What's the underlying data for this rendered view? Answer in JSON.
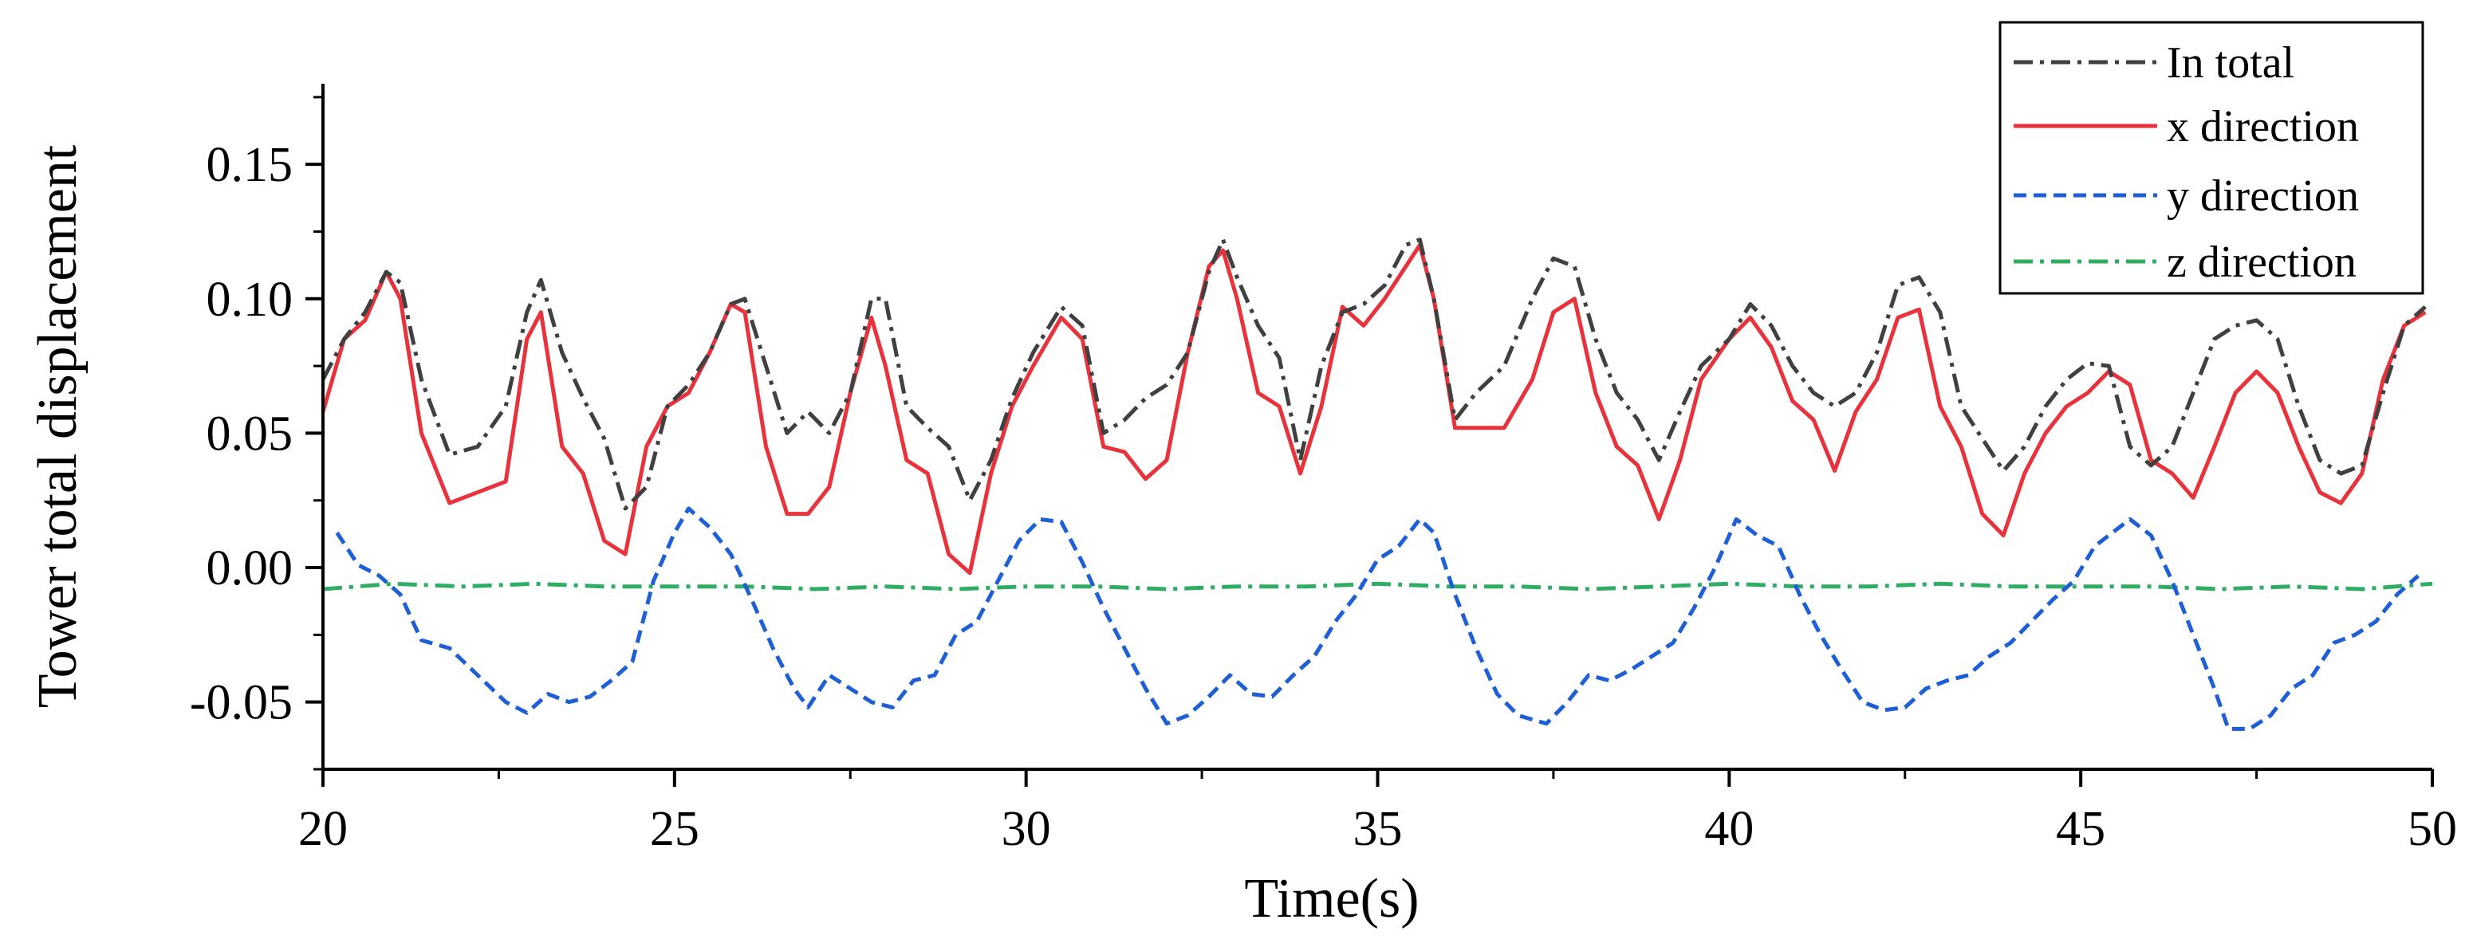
{
  "chart_data": {
    "type": "line",
    "title": "",
    "xlabel": "Time(s)",
    "ylabel": "Tower total displacement",
    "xlim": [
      20,
      50
    ],
    "ylim": [
      -0.075,
      0.18
    ],
    "x_ticks": [
      20,
      25,
      30,
      35,
      40,
      45,
      50
    ],
    "x_tick_labels": [
      "20",
      "25",
      "30",
      "35",
      "40",
      "45",
      "50"
    ],
    "y_ticks": [
      -0.05,
      0,
      0.05,
      0.1,
      0.15
    ],
    "y_tick_labels": [
      "-0.05",
      "0.00",
      "0.05",
      "0.10",
      "0.15"
    ],
    "legend_position": "top-right",
    "series": [
      {
        "name": "In total",
        "color": "#404040",
        "style": "dashdot",
        "x": [
          20.0,
          20.3,
          20.6,
          20.9,
          21.1,
          21.4,
          21.8,
          22.2,
          22.6,
          22.9,
          23.1,
          23.4,
          23.7,
          24.0,
          24.3,
          24.6,
          24.9,
          25.2,
          25.5,
          25.8,
          26.0,
          26.3,
          26.6,
          26.9,
          27.2,
          27.5,
          27.8,
          28.0,
          28.3,
          28.6,
          28.9,
          29.2,
          29.5,
          29.8,
          30.1,
          30.5,
          30.8,
          31.1,
          31.4,
          31.7,
          32.0,
          32.3,
          32.6,
          32.8,
          33.0,
          33.3,
          33.6,
          33.9,
          34.2,
          34.5,
          34.8,
          35.1,
          35.4,
          35.6,
          35.8,
          36.1,
          36.4,
          36.8,
          37.2,
          37.5,
          37.8,
          38.1,
          38.4,
          38.7,
          39.0,
          39.3,
          39.6,
          40.0,
          40.3,
          40.6,
          40.9,
          41.2,
          41.5,
          41.8,
          42.1,
          42.4,
          42.7,
          43.0,
          43.3,
          43.6,
          43.9,
          44.2,
          44.5,
          44.8,
          45.1,
          45.4,
          45.7,
          46.0,
          46.3,
          46.6,
          46.9,
          47.2,
          47.5,
          47.8,
          48.1,
          48.4,
          48.7,
          49.0,
          49.3,
          49.6,
          49.9
        ],
        "y": [
          0.07,
          0.085,
          0.095,
          0.11,
          0.106,
          0.07,
          0.042,
          0.045,
          0.06,
          0.095,
          0.107,
          0.08,
          0.063,
          0.048,
          0.022,
          0.03,
          0.06,
          0.068,
          0.08,
          0.098,
          0.1,
          0.075,
          0.05,
          0.058,
          0.05,
          0.065,
          0.1,
          0.1,
          0.06,
          0.052,
          0.045,
          0.025,
          0.04,
          0.063,
          0.08,
          0.097,
          0.09,
          0.05,
          0.055,
          0.063,
          0.068,
          0.08,
          0.11,
          0.122,
          0.108,
          0.09,
          0.078,
          0.04,
          0.075,
          0.095,
          0.098,
          0.105,
          0.12,
          0.122,
          0.1,
          0.055,
          0.065,
          0.075,
          0.1,
          0.115,
          0.112,
          0.085,
          0.065,
          0.055,
          0.04,
          0.058,
          0.075,
          0.085,
          0.098,
          0.09,
          0.075,
          0.065,
          0.06,
          0.065,
          0.08,
          0.105,
          0.108,
          0.095,
          0.06,
          0.048,
          0.036,
          0.045,
          0.06,
          0.07,
          0.076,
          0.075,
          0.045,
          0.038,
          0.045,
          0.065,
          0.085,
          0.09,
          0.092,
          0.085,
          0.06,
          0.04,
          0.035,
          0.038,
          0.065,
          0.09,
          0.097
        ]
      },
      {
        "name": "x direction",
        "color": "#e8323c",
        "style": "solid",
        "x": [
          20.0,
          20.3,
          20.6,
          20.9,
          21.1,
          21.4,
          21.8,
          22.2,
          22.6,
          22.9,
          23.1,
          23.4,
          23.7,
          24.0,
          24.3,
          24.6,
          24.9,
          25.2,
          25.5,
          25.8,
          26.0,
          26.3,
          26.6,
          26.9,
          27.2,
          27.5,
          27.8,
          28.0,
          28.3,
          28.6,
          28.9,
          29.2,
          29.5,
          29.8,
          30.1,
          30.5,
          30.8,
          31.1,
          31.4,
          31.7,
          32.0,
          32.3,
          32.6,
          32.8,
          33.0,
          33.3,
          33.6,
          33.9,
          34.2,
          34.5,
          34.8,
          35.1,
          35.4,
          35.6,
          35.8,
          36.1,
          36.4,
          36.8,
          37.2,
          37.5,
          37.8,
          38.1,
          38.4,
          38.7,
          39.0,
          39.3,
          39.6,
          40.0,
          40.3,
          40.6,
          40.9,
          41.2,
          41.5,
          41.8,
          42.1,
          42.4,
          42.7,
          43.0,
          43.3,
          43.6,
          43.9,
          44.2,
          44.5,
          44.8,
          45.1,
          45.4,
          45.7,
          46.0,
          46.3,
          46.6,
          46.9,
          47.2,
          47.5,
          47.8,
          48.1,
          48.4,
          48.7,
          49.0,
          49.3,
          49.6,
          49.9
        ],
        "y": [
          0.058,
          0.085,
          0.092,
          0.11,
          0.1,
          0.05,
          0.024,
          0.028,
          0.032,
          0.085,
          0.095,
          0.045,
          0.035,
          0.01,
          0.005,
          0.045,
          0.06,
          0.065,
          0.08,
          0.098,
          0.095,
          0.045,
          0.02,
          0.02,
          0.03,
          0.065,
          0.093,
          0.075,
          0.04,
          0.035,
          0.005,
          -0.002,
          0.035,
          0.06,
          0.075,
          0.093,
          0.085,
          0.045,
          0.043,
          0.033,
          0.04,
          0.08,
          0.112,
          0.118,
          0.1,
          0.065,
          0.06,
          0.035,
          0.06,
          0.097,
          0.09,
          0.1,
          0.112,
          0.12,
          0.1,
          0.052,
          0.052,
          0.052,
          0.07,
          0.095,
          0.1,
          0.065,
          0.045,
          0.038,
          0.018,
          0.04,
          0.07,
          0.085,
          0.093,
          0.082,
          0.062,
          0.055,
          0.036,
          0.058,
          0.07,
          0.093,
          0.096,
          0.06,
          0.045,
          0.02,
          0.012,
          0.035,
          0.05,
          0.06,
          0.065,
          0.073,
          0.068,
          0.04,
          0.035,
          0.026,
          0.045,
          0.065,
          0.073,
          0.065,
          0.045,
          0.028,
          0.024,
          0.035,
          0.07,
          0.09,
          0.095
        ]
      },
      {
        "name": "y direction",
        "color": "#1f5fd6",
        "style": "dashed",
        "x": [
          20.2,
          20.5,
          20.8,
          21.1,
          21.4,
          21.8,
          22.2,
          22.6,
          22.9,
          23.2,
          23.5,
          23.8,
          24.1,
          24.4,
          24.7,
          25.0,
          25.2,
          25.5,
          25.8,
          26.1,
          26.4,
          26.7,
          26.9,
          27.2,
          27.5,
          27.8,
          28.1,
          28.4,
          28.7,
          29.0,
          29.3,
          29.6,
          29.9,
          30.2,
          30.5,
          30.8,
          31.1,
          31.4,
          31.7,
          32.0,
          32.3,
          32.6,
          32.9,
          33.2,
          33.5,
          33.8,
          34.1,
          34.4,
          34.7,
          35.0,
          35.3,
          35.6,
          35.8,
          36.1,
          36.4,
          36.7,
          37.0,
          37.4,
          37.7,
          38.0,
          38.3,
          38.6,
          38.9,
          39.2,
          39.5,
          39.8,
          40.1,
          40.4,
          40.7,
          41.0,
          41.3,
          41.6,
          41.9,
          42.2,
          42.5,
          42.8,
          43.1,
          43.4,
          43.7,
          44.0,
          44.3,
          44.6,
          44.9,
          45.2,
          45.4,
          45.7,
          46.0,
          46.3,
          46.6,
          46.9,
          47.1,
          47.4,
          47.7,
          48.0,
          48.3,
          48.6,
          48.9,
          49.2,
          49.5,
          49.8
        ],
        "y": [
          0.013,
          0.001,
          -0.003,
          -0.01,
          -0.027,
          -0.03,
          -0.04,
          -0.05,
          -0.054,
          -0.047,
          -0.05,
          -0.048,
          -0.042,
          -0.035,
          -0.005,
          0.013,
          0.022,
          0.015,
          0.005,
          -0.012,
          -0.03,
          -0.045,
          -0.052,
          -0.04,
          -0.045,
          -0.05,
          -0.052,
          -0.042,
          -0.04,
          -0.025,
          -0.02,
          -0.005,
          0.01,
          0.018,
          0.017,
          0.002,
          -0.015,
          -0.03,
          -0.045,
          -0.058,
          -0.055,
          -0.048,
          -0.04,
          -0.047,
          -0.048,
          -0.04,
          -0.033,
          -0.02,
          -0.01,
          0.003,
          0.008,
          0.018,
          0.013,
          -0.01,
          -0.03,
          -0.047,
          -0.055,
          -0.058,
          -0.05,
          -0.04,
          -0.042,
          -0.038,
          -0.033,
          -0.028,
          -0.015,
          0.0,
          0.018,
          0.012,
          0.008,
          -0.01,
          -0.025,
          -0.038,
          -0.05,
          -0.053,
          -0.052,
          -0.045,
          -0.042,
          -0.04,
          -0.033,
          -0.028,
          -0.02,
          -0.012,
          -0.005,
          0.008,
          0.012,
          0.018,
          0.012,
          -0.005,
          -0.025,
          -0.045,
          -0.06,
          -0.06,
          -0.055,
          -0.045,
          -0.04,
          -0.028,
          -0.025,
          -0.02,
          -0.01,
          -0.003
        ]
      },
      {
        "name": "z direction",
        "color": "#2fae63",
        "style": "dashdot",
        "x": [
          20.0,
          21.0,
          22.0,
          23.0,
          24.0,
          25.0,
          26.0,
          27.0,
          28.0,
          29.0,
          30.0,
          31.0,
          32.0,
          33.0,
          34.0,
          35.0,
          36.0,
          37.0,
          38.0,
          39.0,
          40.0,
          41.0,
          42.0,
          43.0,
          44.0,
          45.0,
          46.0,
          47.0,
          48.0,
          49.0,
          50.0
        ],
        "y": [
          -0.008,
          -0.006,
          -0.007,
          -0.006,
          -0.007,
          -0.007,
          -0.007,
          -0.008,
          -0.007,
          -0.008,
          -0.007,
          -0.007,
          -0.008,
          -0.007,
          -0.007,
          -0.006,
          -0.007,
          -0.007,
          -0.008,
          -0.007,
          -0.006,
          -0.007,
          -0.007,
          -0.006,
          -0.007,
          -0.007,
          -0.007,
          -0.008,
          -0.007,
          -0.008,
          -0.006
        ]
      }
    ]
  }
}
